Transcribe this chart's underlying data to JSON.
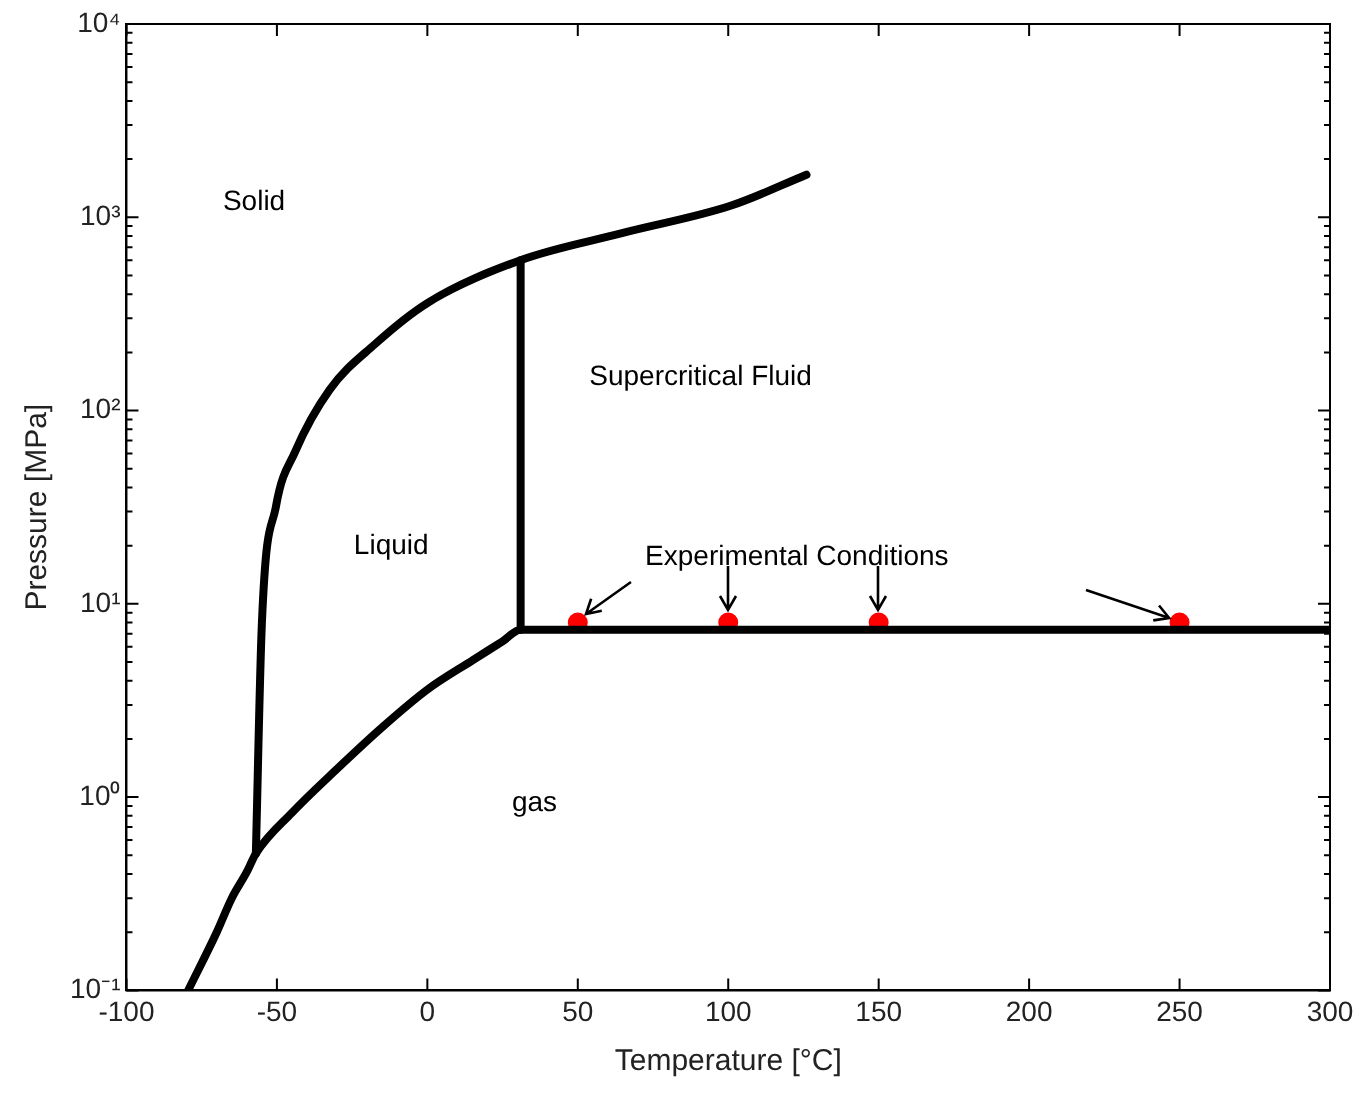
{
  "chart_data": {
    "type": "line",
    "xlabel": "Temperature [°C]",
    "ylabel": "Pressure [MPa]",
    "log": "y",
    "grid": false,
    "legend": false,
    "marker": "none",
    "line_style": "solid",
    "xlim": [
      -100,
      300
    ],
    "xticks": [
      -100,
      -50,
      0,
      50,
      100,
      150,
      200,
      250,
      300
    ],
    "ylim": [
      0.1,
      10000
    ],
    "yticks": [
      {
        "value": 0.1,
        "label": "10⁻¹"
      },
      {
        "value": 0.2,
        "label": null
      },
      {
        "value": 0.3,
        "label": null
      },
      {
        "value": 0.4,
        "label": null
      },
      {
        "value": 0.5,
        "label": null
      },
      {
        "value": 0.6,
        "label": null
      },
      {
        "value": 0.7,
        "label": null
      },
      {
        "value": 0.8,
        "label": null
      },
      {
        "value": 0.9,
        "label": null
      },
      {
        "value": 1,
        "label": "10⁰"
      },
      {
        "value": 2,
        "label": null
      },
      {
        "value": 3,
        "label": null
      },
      {
        "value": 4,
        "label": null
      },
      {
        "value": 5,
        "label": null
      },
      {
        "value": 6,
        "label": null
      },
      {
        "value": 7,
        "label": null
      },
      {
        "value": 8,
        "label": null
      },
      {
        "value": 9,
        "label": null
      },
      {
        "value": 10,
        "label": "10¹"
      },
      {
        "value": 20,
        "label": null
      },
      {
        "value": 30,
        "label": null
      },
      {
        "value": 40,
        "label": null
      },
      {
        "value": 50,
        "label": null
      },
      {
        "value": 60,
        "label": null
      },
      {
        "value": 70,
        "label": null
      },
      {
        "value": 80,
        "label": null
      },
      {
        "value": 90,
        "label": null
      },
      {
        "value": 100,
        "label": "10²"
      },
      {
        "value": 200,
        "label": null
      },
      {
        "value": 300,
        "label": null
      },
      {
        "value": 400,
        "label": null
      },
      {
        "value": 500,
        "label": null
      },
      {
        "value": 600,
        "label": null
      },
      {
        "value": 700,
        "label": null
      },
      {
        "value": 800,
        "label": null
      },
      {
        "value": 900,
        "label": null
      },
      {
        "value": 1000,
        "label": "10³"
      },
      {
        "value": 2000,
        "label": null
      },
      {
        "value": 3000,
        "label": null
      },
      {
        "value": 4000,
        "label": null
      },
      {
        "value": 5000,
        "label": null
      },
      {
        "value": 6000,
        "label": null
      },
      {
        "value": 7000,
        "label": null
      },
      {
        "value": 8000,
        "label": null
      },
      {
        "value": 9000,
        "label": null
      },
      {
        "value": 10000,
        "label": "10⁴"
      }
    ],
    "series": [
      {
        "color": "#000000",
        "x": [
          -79.5,
          -70,
          -65,
          -60,
          -57,
          -45,
          -30,
          -15,
          0,
          15,
          25,
          31,
          300
        ],
        "values": [
          0.1,
          0.2,
          0.3,
          0.41,
          0.51,
          0.83,
          1.4,
          2.3,
          3.6,
          5.1,
          6.4,
          7.35,
          7.35
        ]
      },
      {
        "color": "#000000",
        "x": [
          -57,
          -55,
          -50.3,
          -44,
          -32.5,
          -17.5,
          0,
          31,
          65,
          101,
          126
        ],
        "values": [
          0.51,
          7.9,
          32,
          61,
          128,
          220,
          360,
          600,
          830,
          1150,
          1660
        ]
      },
      {
        "color": "#000000",
        "x": [
          31,
          31
        ],
        "values": [
          7.35,
          600
        ]
      },
      {
        "type": "scatter",
        "color": "#ff0000",
        "marker": "circle",
        "x": [
          50,
          100,
          150,
          250
        ],
        "values": [
          8,
          8,
          8,
          8
        ]
      }
    ],
    "annotations": [
      "Solid",
      "Supercritical Fluid",
      "Liquid",
      "gas",
      "Experimental Conditions"
    ]
  }
}
